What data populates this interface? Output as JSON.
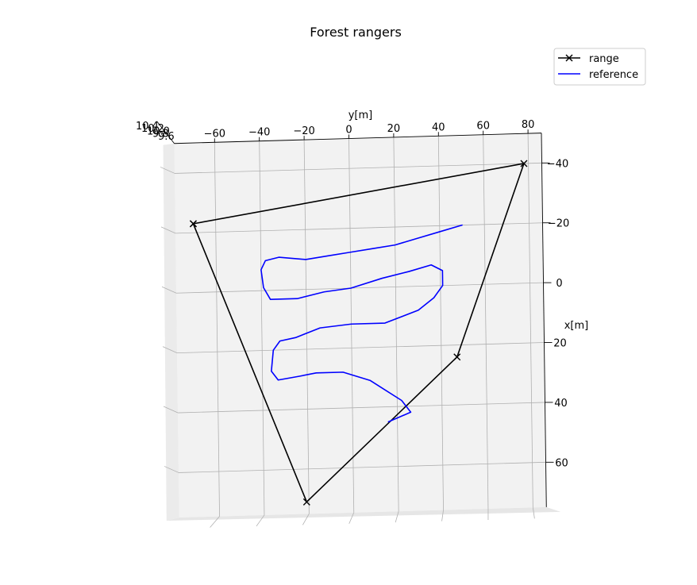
{
  "chart_data": {
    "type": "line",
    "title": "Forest rangers",
    "projection": "3d",
    "xlabel": "x[m]",
    "ylabel": "y[m]",
    "zlabel": "",
    "xlim": [
      -50,
      75
    ],
    "ylim": [
      -78,
      86
    ],
    "x_ticks": [
      -40,
      -20,
      0,
      20,
      40,
      60
    ],
    "y_ticks": [
      -60,
      -40,
      -20,
      0,
      20,
      40,
      60,
      80
    ],
    "z_ticks": [
      "10.4",
      "10.2",
      "10.0",
      "9.8",
      "9.6"
    ],
    "grid": true,
    "legend": {
      "position": "top-right",
      "entries": [
        "range",
        "reference"
      ]
    },
    "series": [
      {
        "name": "range",
        "color": "#000000",
        "marker": "x",
        "points": [
          [
            -23,
            -70
          ],
          [
            -40,
            78
          ],
          [
            24,
            47
          ],
          [
            71,
            -21
          ],
          [
            -23,
            -70
          ]
        ]
      },
      {
        "name": "reference",
        "color": "#0000ff",
        "marker": "none",
        "points": [
          [
            -20,
            50
          ],
          [
            -18,
            40
          ],
          [
            -16,
            30
          ],
          [
            -14,
            20
          ],
          [
            -13,
            10
          ],
          [
            -12,
            0
          ],
          [
            -11,
            -10
          ],
          [
            -10,
            -20
          ],
          [
            -11,
            -32
          ],
          [
            -10,
            -38
          ],
          [
            -7,
            -40
          ],
          [
            -1,
            -39
          ],
          [
            3,
            -36
          ],
          [
            3,
            -24
          ],
          [
            1,
            -12
          ],
          [
            0,
            0
          ],
          [
            -3,
            14
          ],
          [
            -5,
            26
          ],
          [
            -7,
            36
          ],
          [
            -5,
            41
          ],
          [
            0,
            41
          ],
          [
            4,
            37
          ],
          [
            8,
            30
          ],
          [
            12,
            15
          ],
          [
            12,
            0
          ],
          [
            13,
            -14
          ],
          [
            16,
            -25
          ],
          [
            17,
            -32
          ],
          [
            20,
            -35
          ],
          [
            27,
            -36
          ],
          [
            30,
            -33
          ],
          [
            29,
            -24
          ],
          [
            28,
            -16
          ],
          [
            28,
            -4
          ],
          [
            31,
            8
          ],
          [
            34,
            14
          ],
          [
            38,
            22
          ],
          [
            42,
            26
          ],
          [
            45,
            16
          ]
        ]
      }
    ]
  }
}
